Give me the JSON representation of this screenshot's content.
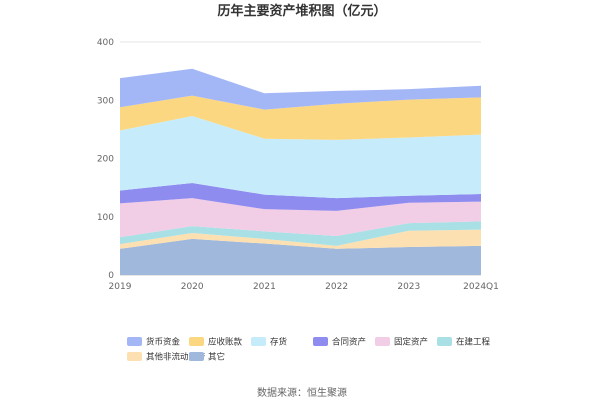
{
  "chart_data": {
    "type": "area",
    "title": "历年主要资产堆积图（亿元）",
    "categories": [
      "2019",
      "2020",
      "2021",
      "2022",
      "2023",
      "2024Q1"
    ],
    "ylim": [
      0,
      400
    ],
    "yticks": [
      "0",
      "100",
      "200",
      "300",
      "400"
    ],
    "grid": true,
    "legend_position": "bottom",
    "series": [
      {
        "name": "其它",
        "color": "#9fb8db",
        "values": [
          45,
          62,
          54,
          45,
          48,
          50
        ]
      },
      {
        "name": "其他非流动资产",
        "color": "#fde0b2",
        "values": [
          8,
          10,
          8,
          5,
          28,
          28
        ]
      },
      {
        "name": "在建工程",
        "color": "#a9e0e6",
        "values": [
          12,
          12,
          13,
          17,
          13,
          14
        ]
      },
      {
        "name": "固定资产",
        "color": "#f2cde6",
        "values": [
          58,
          48,
          38,
          43,
          35,
          34
        ]
      },
      {
        "name": "合同资产",
        "color": "#8f8cf0",
        "values": [
          22,
          26,
          25,
          22,
          12,
          13
        ]
      },
      {
        "name": "存货",
        "color": "#c6ecfb",
        "values": [
          103,
          115,
          96,
          100,
          100,
          102
        ]
      },
      {
        "name": "应收账款",
        "color": "#fcd782",
        "values": [
          40,
          35,
          50,
          62,
          65,
          64
        ]
      },
      {
        "name": "货币资金",
        "color": "#a3b7f7",
        "values": [
          50,
          46,
          28,
          22,
          18,
          20
        ]
      }
    ],
    "legend_order": [
      "货币资金",
      "应收账款",
      "存货",
      "合同资产",
      "固定资产",
      "在建工程",
      "其他非流动资产",
      "其它"
    ],
    "source": "数据来源：恒生聚源"
  }
}
